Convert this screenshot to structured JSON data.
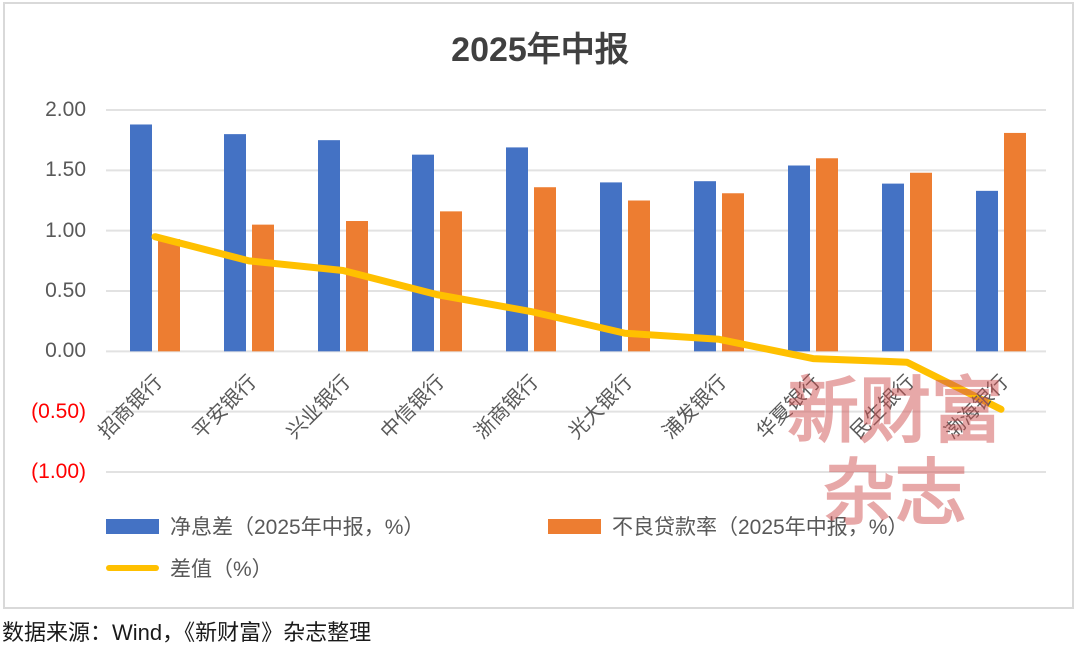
{
  "title": "2025年中报",
  "source_note": "数据来源：Wind，《新财富》杂志整理",
  "watermark": {
    "line1": "新财富",
    "line2": "杂志",
    "color": "rgba(208,82,82,0.5)"
  },
  "colors": {
    "nim_bar": "#4472C4",
    "npl_bar": "#ED7D31",
    "diff_line": "#FFC000",
    "axis_text": "#595959",
    "negative_tick": "#FF0000",
    "gridline": "#E2E2E2",
    "title_text": "#404040",
    "frame_border": "#D9D9D9"
  },
  "chart_data": {
    "type": "bar",
    "subtype": "grouped-bars-with-line",
    "title": "2025年中报",
    "categories": [
      "招商银行",
      "平安银行",
      "兴业银行",
      "中信银行",
      "浙商银行",
      "光大银行",
      "浦发银行",
      "华夏银行",
      "民生银行",
      "渤海银行"
    ],
    "series": [
      {
        "name": "净息差（2025年中报，%）",
        "type": "bar",
        "color": "#4472C4",
        "values": [
          1.88,
          1.8,
          1.75,
          1.63,
          1.69,
          1.4,
          1.41,
          1.54,
          1.39,
          1.33
        ]
      },
      {
        "name": "不良贷款率（2025年中报，%）",
        "type": "bar",
        "color": "#ED7D31",
        "values": [
          0.93,
          1.05,
          1.08,
          1.16,
          1.36,
          1.25,
          1.31,
          1.6,
          1.48,
          1.81
        ]
      },
      {
        "name": "差值（%）",
        "type": "line",
        "color": "#FFC000",
        "values": [
          0.95,
          0.75,
          0.67,
          0.47,
          0.33,
          0.15,
          0.1,
          -0.06,
          -0.09,
          -0.48
        ]
      }
    ],
    "xlabel": "",
    "ylabel": "",
    "ylim": [
      -1.0,
      2.0
    ],
    "grid": true,
    "legend_position": "bottom",
    "y_ticks": [
      {
        "value": 2.0,
        "label": "2.00"
      },
      {
        "value": 1.5,
        "label": "1.50"
      },
      {
        "value": 1.0,
        "label": "1.00"
      },
      {
        "value": 0.5,
        "label": "0.50"
      },
      {
        "value": 0.0,
        "label": "0.00"
      },
      {
        "value": -0.5,
        "label": "(0.50)"
      },
      {
        "value": -1.0,
        "label": "(1.00)"
      }
    ]
  }
}
